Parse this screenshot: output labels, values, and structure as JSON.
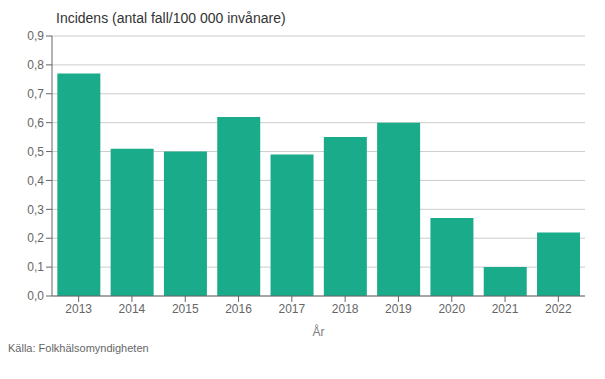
{
  "chart_data": {
    "type": "bar",
    "title": "Incidens (antal fall/100 000 invånare)",
    "xlabel": "År",
    "categories": [
      "2013",
      "2014",
      "2015",
      "2016",
      "2017",
      "2018",
      "2019",
      "2020",
      "2021",
      "2022"
    ],
    "values": [
      0.77,
      0.51,
      0.5,
      0.62,
      0.49,
      0.55,
      0.6,
      0.27,
      0.1,
      0.22
    ],
    "color": "#1aab8a",
    "ylim": [
      0,
      0.9
    ],
    "yticks": [
      {
        "value": 0.0,
        "label": "0,0"
      },
      {
        "value": 0.1,
        "label": "0,1"
      },
      {
        "value": 0.2,
        "label": "0,2"
      },
      {
        "value": 0.3,
        "label": "0,3"
      },
      {
        "value": 0.4,
        "label": "0,4"
      },
      {
        "value": 0.5,
        "label": "0,5"
      },
      {
        "value": 0.6,
        "label": "0,6"
      },
      {
        "value": 0.7,
        "label": "0,7"
      },
      {
        "value": 0.8,
        "label": "0,8"
      },
      {
        "value": 0.9,
        "label": "0,9"
      }
    ],
    "grid": true,
    "annotations": [
      "Källa: Folkhälsomyndigheten"
    ]
  }
}
